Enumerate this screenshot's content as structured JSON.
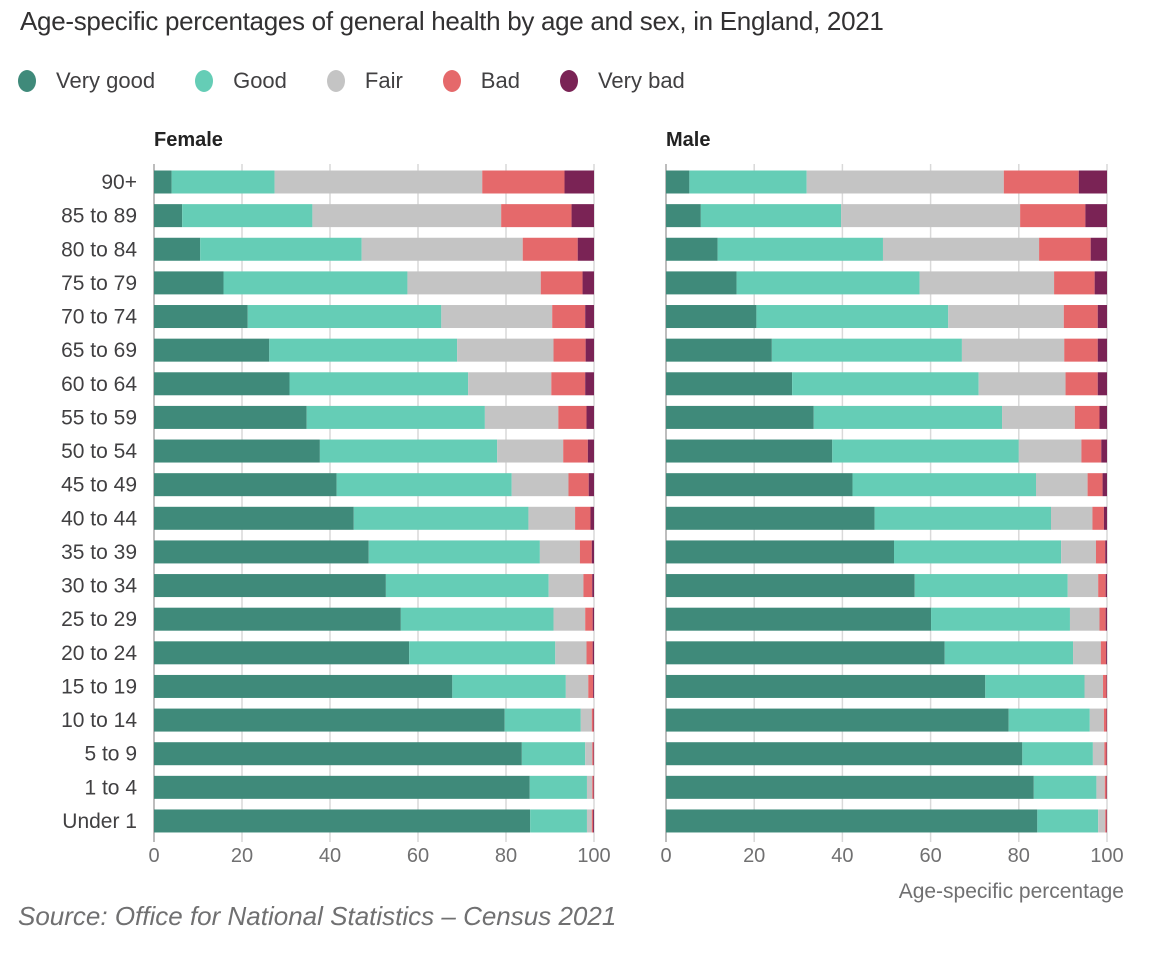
{
  "chart_data": {
    "type": "bar",
    "subtype": "stacked-horizontal-100",
    "title": "Age-specific percentages of general health by age and sex, in England, 2021",
    "source": "Source: Office for National Statistics – Census 2021",
    "xlabel": "Age-specific percentage",
    "ylabel": "",
    "xlim": [
      0,
      100
    ],
    "xticks": [
      "0",
      "20",
      "40",
      "60",
      "80",
      "100"
    ],
    "grid": true,
    "legend_position": "top-left",
    "categories_legend": [
      {
        "name": "Very good",
        "color": "#3F8A7A"
      },
      {
        "name": "Good",
        "color": "#65CDB6"
      },
      {
        "name": "Fair",
        "color": "#C4C4C4"
      },
      {
        "name": "Bad",
        "color": "#E5696B"
      },
      {
        "name": "Very bad",
        "color": "#7A2355"
      }
    ],
    "categories": [
      "90+",
      "85 to 89",
      "80 to 84",
      "75 to 79",
      "70 to 74",
      "65 to 69",
      "60 to 64",
      "55 to 59",
      "50 to 54",
      "45 to 49",
      "40 to 44",
      "35 to 39",
      "30 to 34",
      "25 to 29",
      "20 to 24",
      "15 to 19",
      "10 to 14",
      "5 to 9",
      "1 to 4",
      "Under 1"
    ],
    "panels": [
      {
        "name": "Female",
        "series": [
          {
            "name": "Very good",
            "values": [
              4.0,
              6.4,
              10.5,
              15.8,
              21.3,
              26.2,
              30.8,
              34.7,
              37.7,
              41.5,
              45.4,
              48.8,
              52.7,
              56.1,
              58.0,
              67.8,
              79.7,
              83.6,
              85.4,
              85.5
            ]
          },
          {
            "name": "Good",
            "values": [
              23.4,
              29.6,
              36.7,
              41.8,
              44.0,
              42.7,
              40.6,
              40.5,
              40.3,
              39.8,
              39.7,
              38.9,
              37.0,
              34.7,
              33.2,
              25.8,
              17.3,
              14.4,
              13.0,
              12.9
            ]
          },
          {
            "name": "Fair",
            "values": [
              47.2,
              42.9,
              36.6,
              30.3,
              25.2,
              21.9,
              18.9,
              16.7,
              15.0,
              12.9,
              10.6,
              9.1,
              7.9,
              7.2,
              7.1,
              5.1,
              2.5,
              1.6,
              1.2,
              1.1
            ]
          },
          {
            "name": "Bad",
            "values": [
              18.7,
              16.0,
              12.5,
              9.5,
              7.5,
              7.3,
              7.7,
              6.4,
              5.6,
              4.6,
              3.5,
              2.7,
              2.0,
              1.7,
              1.4,
              1.1,
              0.4,
              0.3,
              0.3,
              0.3
            ]
          },
          {
            "name": "Very bad",
            "values": [
              6.7,
              5.1,
              3.7,
              2.6,
              2.0,
              1.9,
              2.0,
              1.7,
              1.4,
              1.2,
              0.8,
              0.5,
              0.4,
              0.3,
              0.3,
              0.2,
              0.1,
              0.1,
              0.1,
              0.2
            ]
          }
        ]
      },
      {
        "name": "Male",
        "series": [
          {
            "name": "Very good",
            "values": [
              5.3,
              7.9,
              11.7,
              16.0,
              20.5,
              24.0,
              28.6,
              33.5,
              37.7,
              42.3,
              47.3,
              51.7,
              56.4,
              60.1,
              63.2,
              72.4,
              77.7,
              80.8,
              83.4,
              84.2
            ]
          },
          {
            "name": "Good",
            "values": [
              26.6,
              31.8,
              37.5,
              41.5,
              43.5,
              43.1,
              42.3,
              42.7,
              42.3,
              41.6,
              40.0,
              37.9,
              34.7,
              31.5,
              29.1,
              22.5,
              18.4,
              16.0,
              14.2,
              13.8
            ]
          },
          {
            "name": "Fair",
            "values": [
              44.7,
              40.6,
              35.4,
              30.5,
              26.2,
              23.2,
              19.7,
              16.5,
              14.2,
              11.7,
              9.4,
              7.9,
              6.9,
              6.7,
              6.3,
              4.2,
              3.2,
              2.6,
              1.9,
              1.6
            ]
          },
          {
            "name": "Bad",
            "values": [
              17.0,
              14.8,
              11.7,
              9.2,
              7.7,
              7.6,
              7.3,
              5.6,
              4.5,
              3.4,
              2.6,
              2.1,
              1.7,
              1.4,
              1.2,
              0.8,
              0.6,
              0.5,
              0.4,
              0.3
            ]
          },
          {
            "name": "Very bad",
            "values": [
              6.4,
              4.9,
              3.7,
              2.8,
              2.1,
              2.1,
              2.1,
              1.7,
              1.3,
              1.0,
              0.7,
              0.4,
              0.3,
              0.3,
              0.2,
              0.1,
              0.1,
              0.1,
              0.1,
              0.1
            ]
          }
        ]
      }
    ]
  }
}
